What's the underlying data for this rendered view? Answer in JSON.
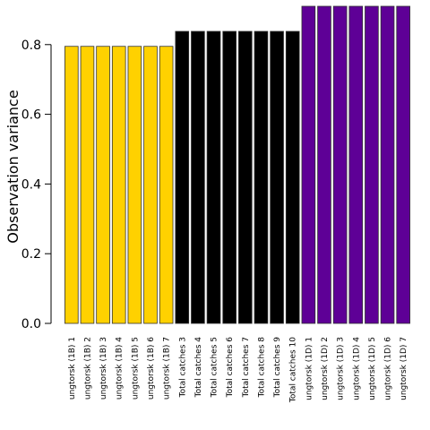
{
  "chart_data": {
    "type": "bar",
    "ylabel": "Observation variance",
    "ylim": [
      0,
      0.91
    ],
    "yticks": [
      "0.0",
      "0.2",
      "0.4",
      "0.6",
      "0.8"
    ],
    "grid": false,
    "categories": [
      "ungtorsk (1B) 1",
      "ungtorsk (1B) 2",
      "ungtorsk (1B) 3",
      "ungtorsk (1B) 4",
      "ungtorsk (1B) 5",
      "ungtorsk (1B) 6",
      "ungtorsk (1B) 7",
      "Total catches 3",
      "Total catches 4",
      "Total catches 5",
      "Total catches 6",
      "Total catches 7",
      "Total catches 8",
      "Total catches 9",
      "Total catches 10",
      "ungtorsk (1D) 1",
      "ungtorsk (1D) 2",
      "ungtorsk (1D) 3",
      "ungtorsk (1D) 4",
      "ungtorsk (1D) 5",
      "ungtorsk (1D) 6",
      "ungtorsk (1D) 7"
    ],
    "values": [
      0.795,
      0.795,
      0.795,
      0.795,
      0.795,
      0.795,
      0.795,
      0.838,
      0.838,
      0.838,
      0.838,
      0.838,
      0.838,
      0.838,
      0.838,
      0.91,
      0.91,
      0.91,
      0.91,
      0.91,
      0.91,
      0.91
    ],
    "colors": [
      "#FFD100",
      "#FFD100",
      "#FFD100",
      "#FFD100",
      "#FFD100",
      "#FFD100",
      "#FFD100",
      "#000000",
      "#000000",
      "#000000",
      "#000000",
      "#000000",
      "#000000",
      "#000000",
      "#000000",
      "#5E0096",
      "#5E0096",
      "#5E0096",
      "#5E0096",
      "#5E0096",
      "#5E0096",
      "#5E0096"
    ],
    "bar_edge_color": "#333333"
  }
}
